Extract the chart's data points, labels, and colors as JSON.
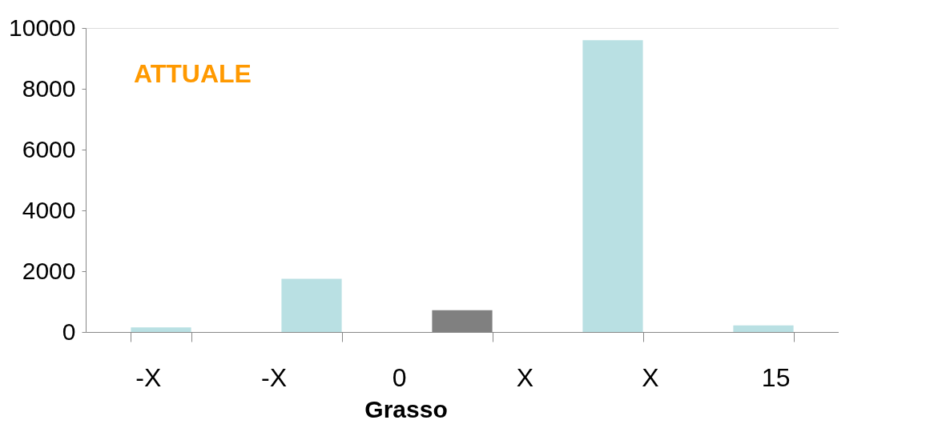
{
  "chart_data": {
    "type": "bar",
    "title": "ATTUALE",
    "xlabel": "Grasso",
    "categories": [
      null,
      null,
      null,
      null,
      null
    ],
    "values": [
      150,
      1750,
      720,
      9600,
      220
    ],
    "colors": [
      "#b9e0e3",
      "#b9e0e3",
      "#808080",
      "#b9e0e3",
      "#b9e0e3"
    ],
    "ylim": [
      0,
      10000
    ],
    "yticks": [
      0,
      2000,
      4000,
      6000,
      8000,
      10000
    ],
    "grid": false,
    "annotations": [
      "-X",
      "-X",
      "0",
      "X",
      "X",
      "15"
    ]
  }
}
